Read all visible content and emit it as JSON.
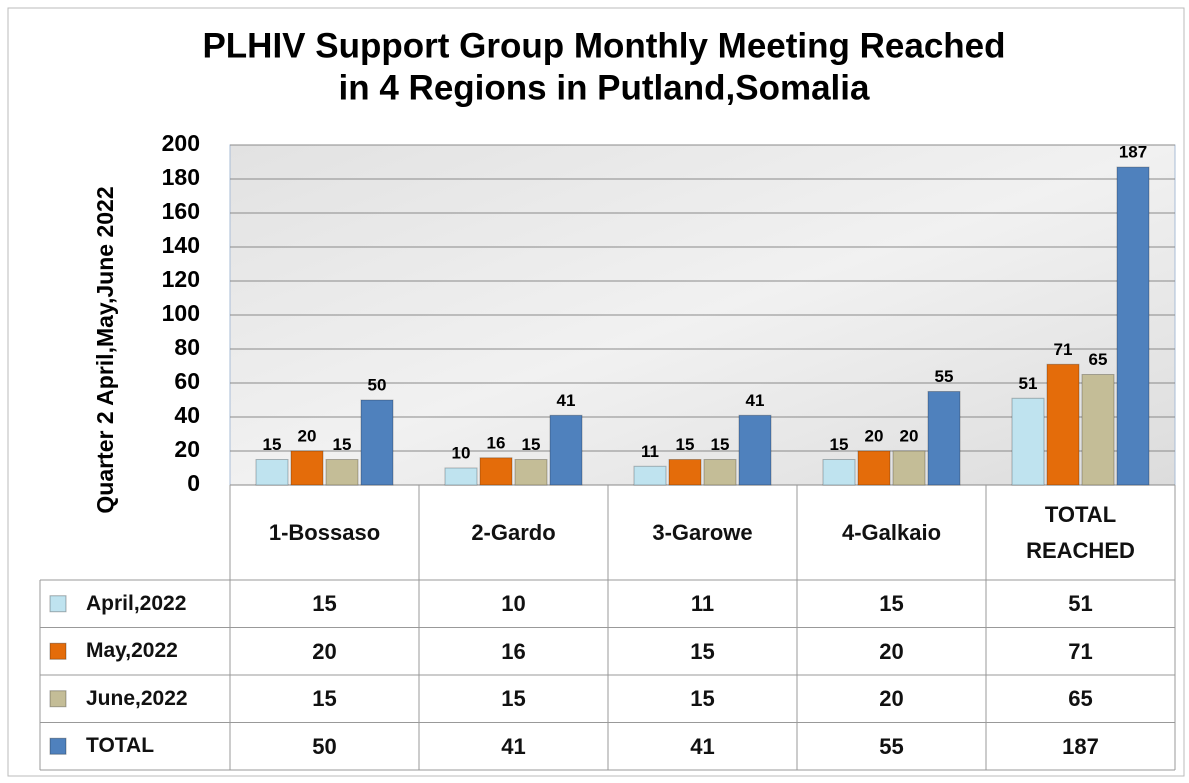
{
  "chart_data": {
    "type": "bar",
    "title": [
      "PLHIV Support Group Monthly Meeting Reached",
      "in 4 Regions in Putland,Somalia"
    ],
    "y_label": "Quarter 2 April,May,June 2022",
    "categories": [
      "1-Bossaso",
      "2-Gardo",
      "3-Garowe",
      "4-Galkaio",
      "TOTAL REACHED"
    ],
    "series": [
      {
        "name": "April,2022",
        "color": "#bfe3ef",
        "values": [
          15,
          10,
          11,
          15,
          51
        ]
      },
      {
        "name": "May,2022",
        "color": "#e46c0a",
        "values": [
          20,
          16,
          15,
          20,
          71
        ]
      },
      {
        "name": "June,2022",
        "color": "#c4bd97",
        "values": [
          15,
          15,
          15,
          20,
          65
        ]
      },
      {
        "name": "TOTAL",
        "color": "#4f81bd",
        "values": [
          50,
          41,
          41,
          55,
          187
        ]
      }
    ],
    "ylim": [
      0,
      200
    ],
    "yticks": [
      0,
      20,
      40,
      60,
      80,
      100,
      120,
      140,
      160,
      180,
      200
    ],
    "grid": true
  }
}
